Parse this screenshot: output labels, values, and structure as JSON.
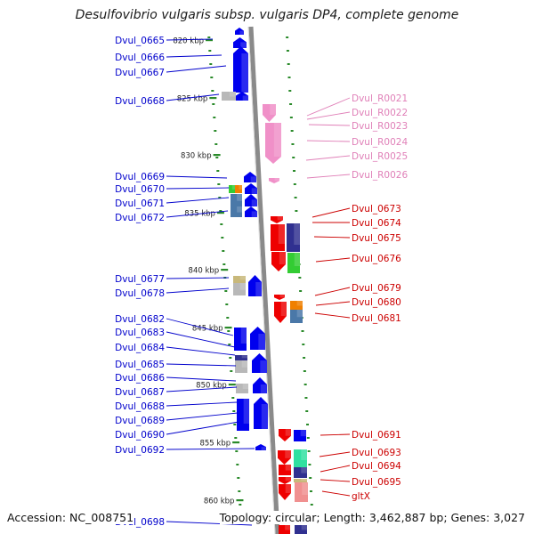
{
  "title": "Desulfovibrio vulgaris subsp. vulgaris DP4, complete genome",
  "accession_text": "Accession: NC_008751",
  "topology_text": "Topology: circular; Length: 3,462,887 bp; Genes: 3,027",
  "colors": {
    "left_label": "#0000cc",
    "right_label_red": "#cc0000",
    "right_label_pink": "#e080b8",
    "tick": "#2a8a2a",
    "backbone": "#8a8a8a",
    "gene_blue": "#0000ee",
    "gene_red": "#ee0000",
    "gene_pink": "#f090c8",
    "gene_green": "#33cc33",
    "gene_orange": "#f08000",
    "gene_gray": "#b8b8b8",
    "gene_navy": "#303090",
    "gene_steel": "#4a78a8",
    "gene_tan": "#c8b87a",
    "gene_teal": "#30e0a0",
    "gene_rose": "#f09090"
  },
  "scale_labels": [
    "820 kbp",
    "825 kbp",
    "830 kbp",
    "835 kbp",
    "840 kbp",
    "845 kbp",
    "850 kbp",
    "855 kbp",
    "860 kbp"
  ],
  "left_labels": [
    "Dvul_0665",
    "Dvul_0666",
    "Dvul_0667",
    "Dvul_0668",
    "Dvul_0669",
    "Dvul_0670",
    "Dvul_0671",
    "Dvul_0672",
    "Dvul_0677",
    "Dvul_0678",
    "Dvul_0682",
    "Dvul_0683",
    "Dvul_0684",
    "Dvul_0685",
    "Dvul_0686",
    "Dvul_0687",
    "Dvul_0688",
    "Dvul_0689",
    "Dvul_0690",
    "Dvul_0692",
    "Dvul_0698"
  ],
  "right_labels": [
    "Dvul_R0021",
    "Dvul_R0022",
    "Dvul_R0023",
    "Dvul_R0024",
    "Dvul_R0025",
    "Dvul_R0026",
    "Dvul_0673",
    "Dvul_0674",
    "Dvul_0675",
    "Dvul_0676",
    "Dvul_0679",
    "Dvul_0680",
    "Dvul_0681",
    "Dvul_0691",
    "Dvul_0693",
    "Dvul_0694",
    "Dvul_0695",
    "gltX"
  ]
}
